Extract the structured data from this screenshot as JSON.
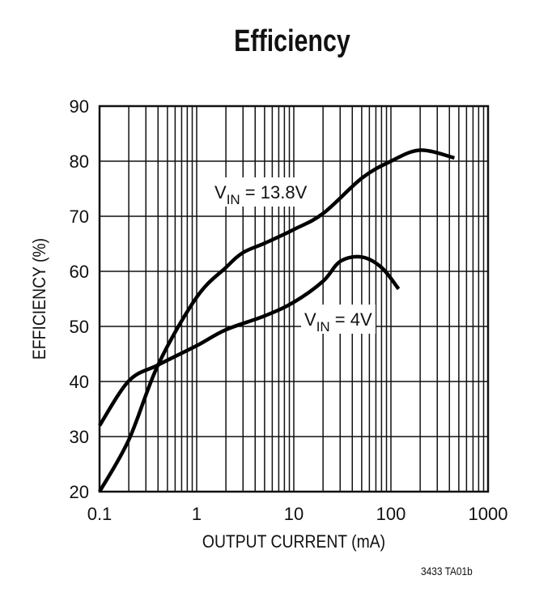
{
  "chart_data": {
    "type": "line",
    "title": "Efficiency",
    "xlabel": "OUTPUT CURRENT (mA)",
    "ylabel": "EFFICIENCY (%)",
    "x_scale": "log",
    "xlim": [
      0.1,
      1000
    ],
    "ylim": [
      20,
      90
    ],
    "x_ticks": [
      "0.1",
      "1",
      "10",
      "100",
      "1000"
    ],
    "y_ticks": [
      "20",
      "30",
      "40",
      "50",
      "60",
      "70",
      "80",
      "90"
    ],
    "grid": true,
    "series": [
      {
        "name_main": "V",
        "name_sub": "IN",
        "name_rest": " = 13.8V",
        "x": [
          0.1,
          0.2,
          0.4,
          1,
          2,
          3,
          5,
          10,
          20,
          50,
          100,
          200,
          450
        ],
        "y": [
          20,
          29.4,
          43,
          55.3,
          60.7,
          63.4,
          65.1,
          67.6,
          70.5,
          76.9,
          80,
          82,
          80.6
        ]
      },
      {
        "name_main": "V",
        "name_sub": "IN",
        "name_rest": " = 4V",
        "x": [
          0.1,
          0.2,
          0.4,
          1,
          2,
          5,
          10,
          20,
          30,
          50,
          80,
          120
        ],
        "y": [
          32,
          40.1,
          43,
          46.5,
          49.4,
          51.9,
          54.4,
          58.2,
          61.8,
          62.6,
          60.7,
          56.8
        ]
      }
    ],
    "footnote": "3433 TA01b"
  }
}
